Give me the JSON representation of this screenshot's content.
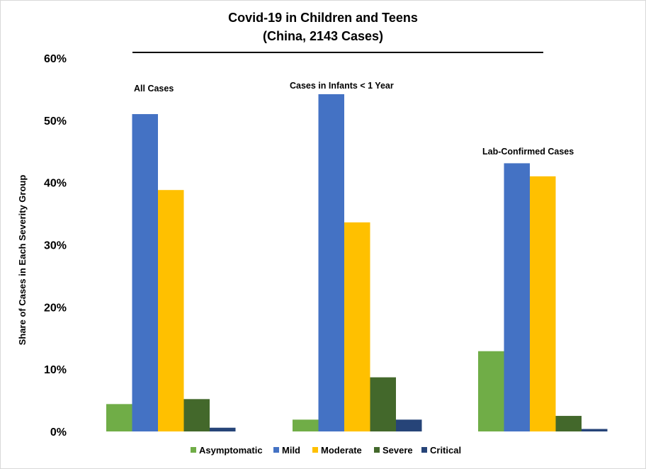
{
  "chart_data": {
    "type": "bar",
    "title": "Covid-19 in Children and Teens",
    "subtitle": "(China, 2143 Cases)",
    "xlabel": "",
    "ylabel": "Share of Cases in Each Severity Group",
    "ylim": [
      0,
      60
    ],
    "y_ticks": [
      "0%",
      "10%",
      "20%",
      "30%",
      "40%",
      "50%",
      "60%"
    ],
    "y_tick_values": [
      0,
      10,
      20,
      30,
      40,
      50,
      60
    ],
    "grid": false,
    "legend_position": "bottom",
    "categories": [
      "All Cases",
      "Cases in Infants < 1 Year",
      "Lab-Confirmed Cases"
    ],
    "series": [
      {
        "name": "Asymptomatic",
        "color": "#70ad47",
        "values": [
          4.4,
          1.9,
          12.9
        ]
      },
      {
        "name": "Mild",
        "color": "#4472c4",
        "values": [
          51.0,
          54.2,
          43.1
        ]
      },
      {
        "name": "Moderate",
        "color": "#ffc000",
        "values": [
          38.8,
          33.6,
          41.0
        ]
      },
      {
        "name": "Severe",
        "color": "#43682b",
        "values": [
          5.2,
          8.7,
          2.5
        ]
      },
      {
        "name": "Critical",
        "color": "#264478",
        "values": [
          0.6,
          1.9,
          0.4
        ]
      }
    ]
  }
}
